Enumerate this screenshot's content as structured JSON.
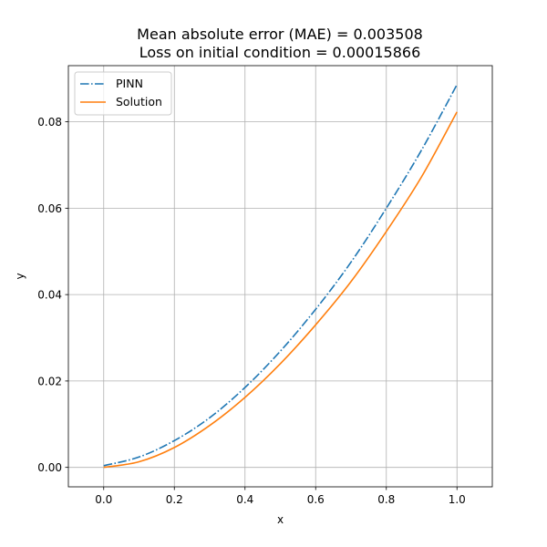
{
  "chart_data": {
    "type": "line",
    "title_lines": [
      "Mean absolute error (MAE) = 0.003508",
      "Loss on initial condition = 0.00015866"
    ],
    "xlabel": "x",
    "ylabel": "y",
    "xlim": [
      -0.1,
      1.1
    ],
    "ylim": [
      -0.0045,
      0.093
    ],
    "xticks": [
      0.0,
      0.2,
      0.4,
      0.6,
      0.8,
      1.0
    ],
    "xtick_labels": [
      "0.0",
      "0.2",
      "0.4",
      "0.6",
      "0.8",
      "1.0"
    ],
    "yticks": [
      0.0,
      0.02,
      0.04,
      0.06,
      0.08
    ],
    "ytick_labels": [
      "0.00",
      "0.02",
      "0.04",
      "0.06",
      "0.08"
    ],
    "grid": true,
    "legend_position": "upper-left",
    "x": [
      0.0,
      0.1,
      0.2,
      0.3,
      0.4,
      0.5,
      0.6,
      0.7,
      0.8,
      0.9,
      1.0
    ],
    "series": [
      {
        "name": "PINN",
        "color": "#1f77b4",
        "style": "dashdot",
        "values": [
          0.0004,
          0.0024,
          0.0062,
          0.0115,
          0.0185,
          0.0269,
          0.0366,
          0.0475,
          0.06,
          0.0735,
          0.0886
        ]
      },
      {
        "name": "Solution",
        "color": "#ff7f0e",
        "style": "solid",
        "values": [
          0.0,
          0.0013,
          0.0046,
          0.0097,
          0.0162,
          0.024,
          0.033,
          0.043,
          0.0546,
          0.0673,
          0.0823
        ]
      }
    ]
  }
}
